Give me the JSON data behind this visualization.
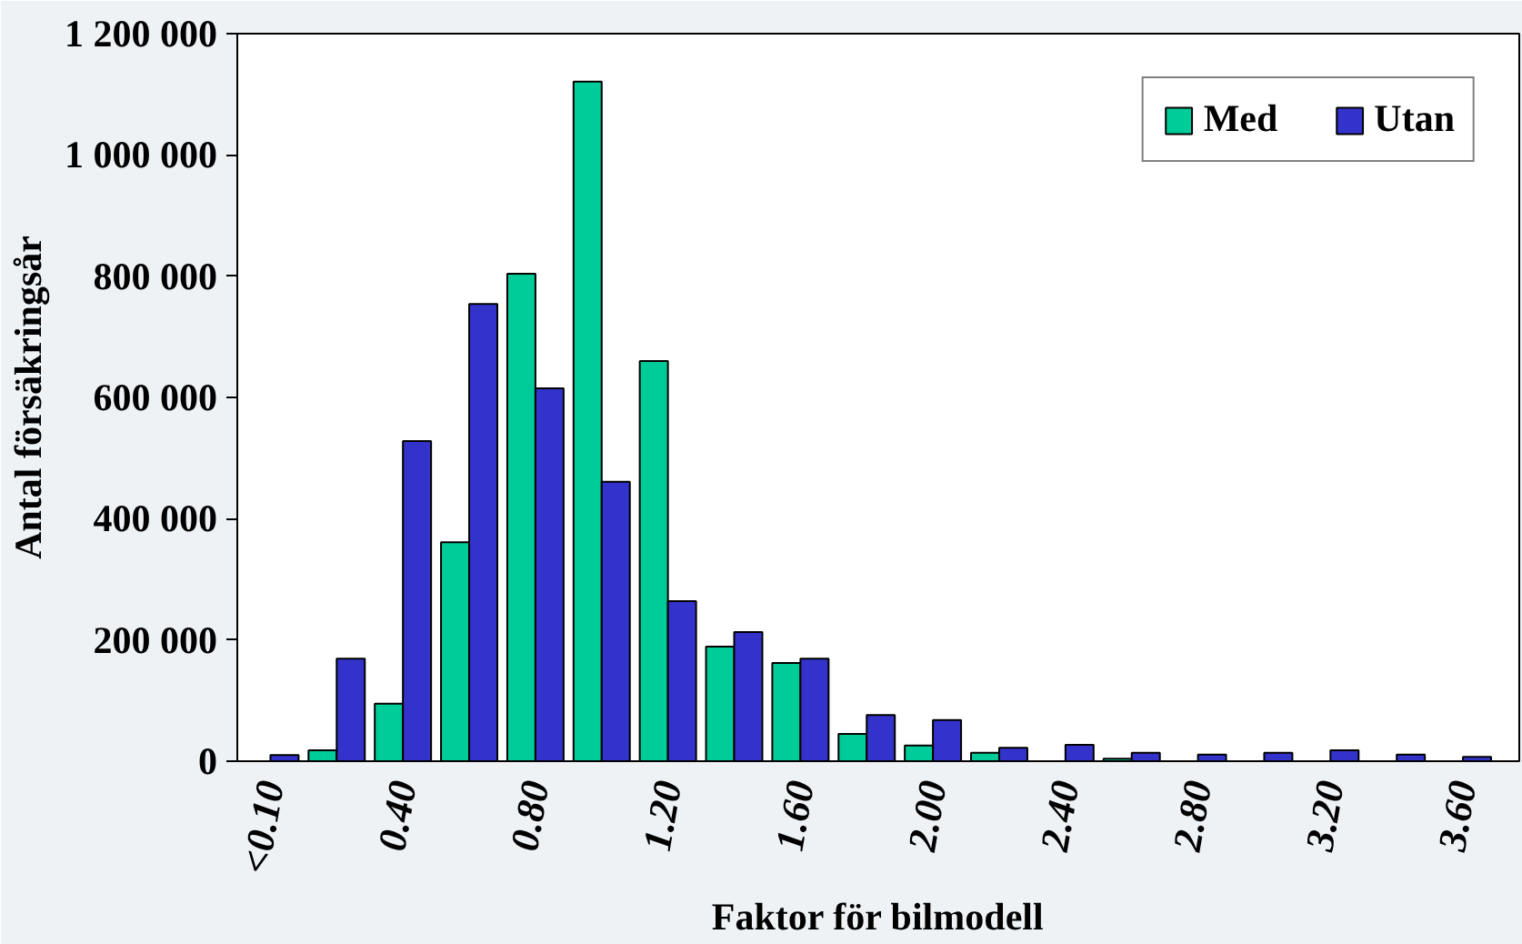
{
  "chart_data": {
    "type": "bar",
    "xlabel": "Faktor för bilmodell",
    "ylabel": "Antal försäkringsår",
    "categories": [
      "<0.10",
      null,
      "0.40",
      null,
      "0.80",
      null,
      "1.20",
      null,
      "1.60",
      null,
      "2.00",
      null,
      "2.40",
      null,
      "2.80",
      null,
      "3.20",
      null,
      "3.60"
    ],
    "series": [
      {
        "name": "Med",
        "color": "#00cc99",
        "values": [
          null,
          18000,
          95000,
          361000,
          804000,
          1121000,
          660000,
          189000,
          162000,
          45000,
          26000,
          14000,
          null,
          4000,
          null,
          null,
          null,
          null,
          null
        ]
      },
      {
        "name": "Utan",
        "color": "#3333cc",
        "values": [
          10000,
          169000,
          528000,
          754000,
          615000,
          461000,
          264000,
          213000,
          169000,
          76000,
          68000,
          22000,
          27000,
          14000,
          11000,
          14000,
          18000,
          11000,
          7000
        ]
      }
    ],
    "ylim": [
      0,
      1200000
    ],
    "yticks": [
      0,
      {
        "value": 200000,
        "label": "200 000"
      },
      {
        "value": 400000,
        "label": "400 000"
      },
      {
        "value": 600000,
        "label": "600 000"
      },
      {
        "value": 800000,
        "label": "800 000"
      },
      {
        "value": 1000000,
        "label": "1 000 000"
      },
      {
        "value": 1200000,
        "label": "1 200 000"
      }
    ],
    "grid": false,
    "legend": "top right"
  }
}
